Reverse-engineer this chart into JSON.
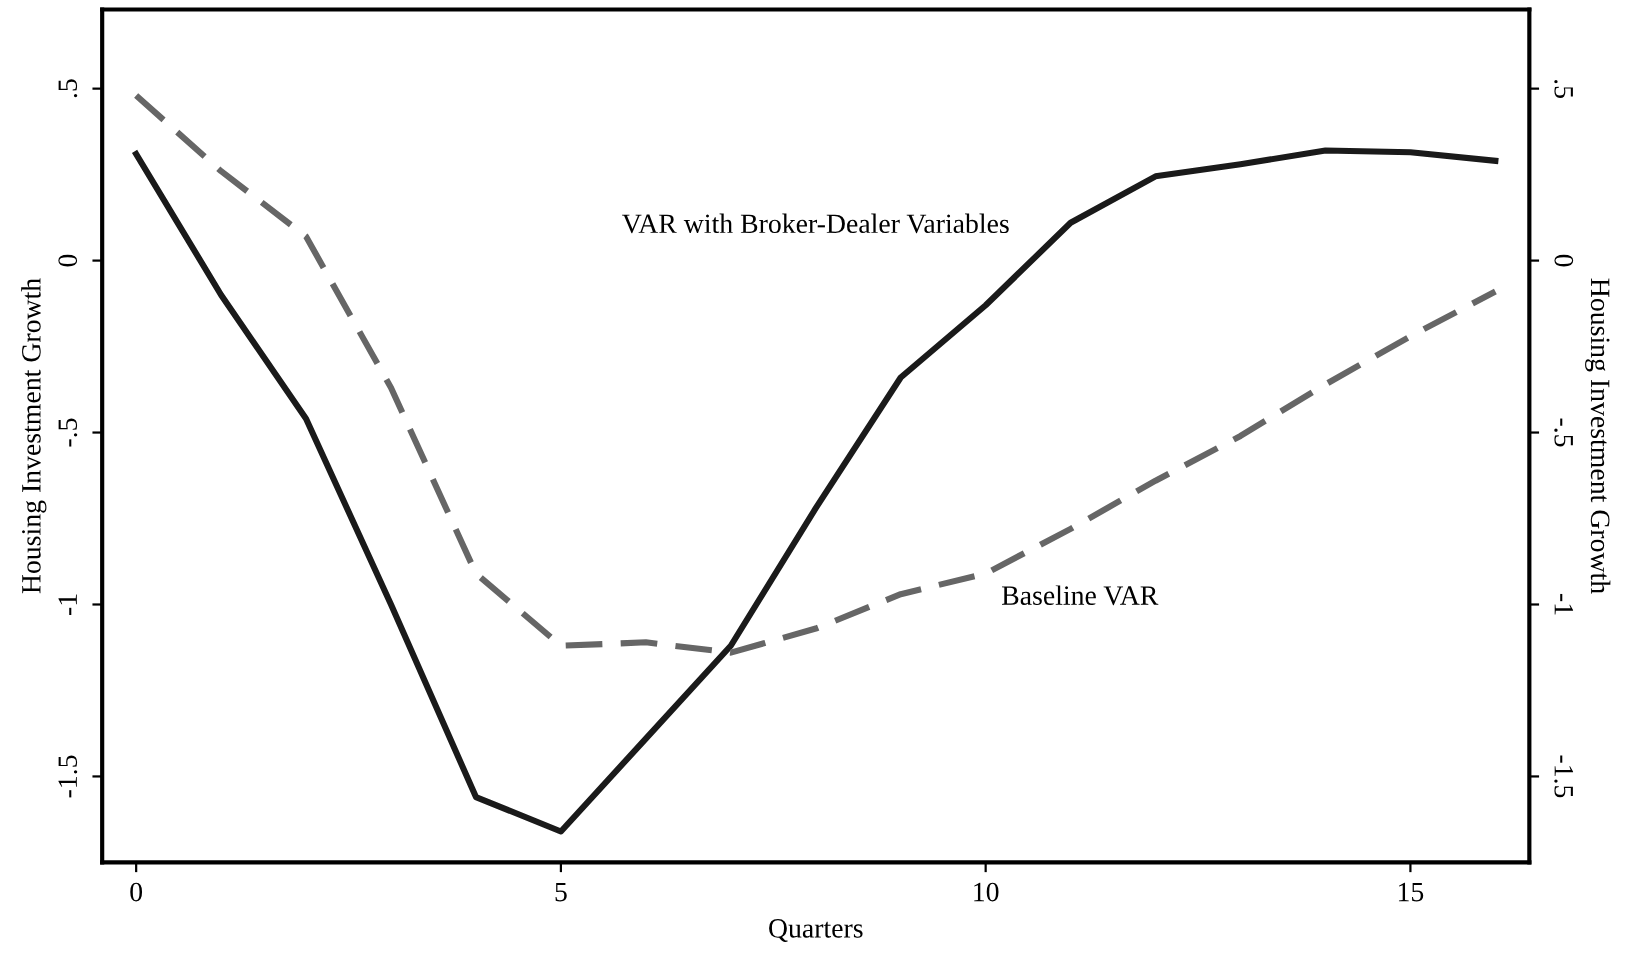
{
  "chart_data": {
    "type": "line",
    "xlabel": "Quarters",
    "ylabel": "Housing Investment Growth",
    "y2label": "Housing Investment Growth",
    "x": [
      0,
      1,
      2,
      3,
      4,
      5,
      6,
      7,
      8,
      9,
      10,
      11,
      12,
      13,
      14,
      15,
      16
    ],
    "series": [
      {
        "color": "#1a1a1a",
        "line_style": "solid",
        "values": [
          0.31,
          -0.1,
          -0.46,
          -1.0,
          -1.56,
          -1.66,
          -1.39,
          -1.12,
          -0.72,
          -0.34,
          -0.13,
          0.11,
          0.245,
          0.28,
          0.32,
          0.315,
          0.29
        ]
      },
      {
        "color": "#666666",
        "line_style": "dashed",
        "values": [
          0.48,
          0.26,
          0.07,
          -0.37,
          -0.91,
          -1.12,
          -1.11,
          -1.14,
          -1.07,
          -0.97,
          -0.91,
          -0.78,
          -0.64,
          -0.51,
          -0.36,
          -0.22,
          -0.09
        ]
      }
    ],
    "annotations": [
      "VAR with Broker-Dealer Variables",
      "Baseline VAR"
    ],
    "xlim": [
      -0.4,
      16.4
    ],
    "xticks": [
      0,
      5,
      10,
      15
    ],
    "ylim": [
      -1.75,
      0.73
    ],
    "yticks": [
      {
        "value": 0.5,
        "label": ".5"
      },
      0,
      {
        "value": -0.5,
        "label": "-.5"
      },
      -1,
      {
        "value": -1.5,
        "label": "-1.5"
      }
    ],
    "y2lim": [
      -1.75,
      0.73
    ],
    "y2ticks": [
      {
        "value": 0.5,
        "label": ".5"
      },
      0,
      {
        "value": -0.5,
        "label": "-.5"
      },
      -1,
      {
        "value": -1.5,
        "label": "-1.5"
      }
    ],
    "grid": false,
    "legend": false,
    "marker": "none"
  }
}
